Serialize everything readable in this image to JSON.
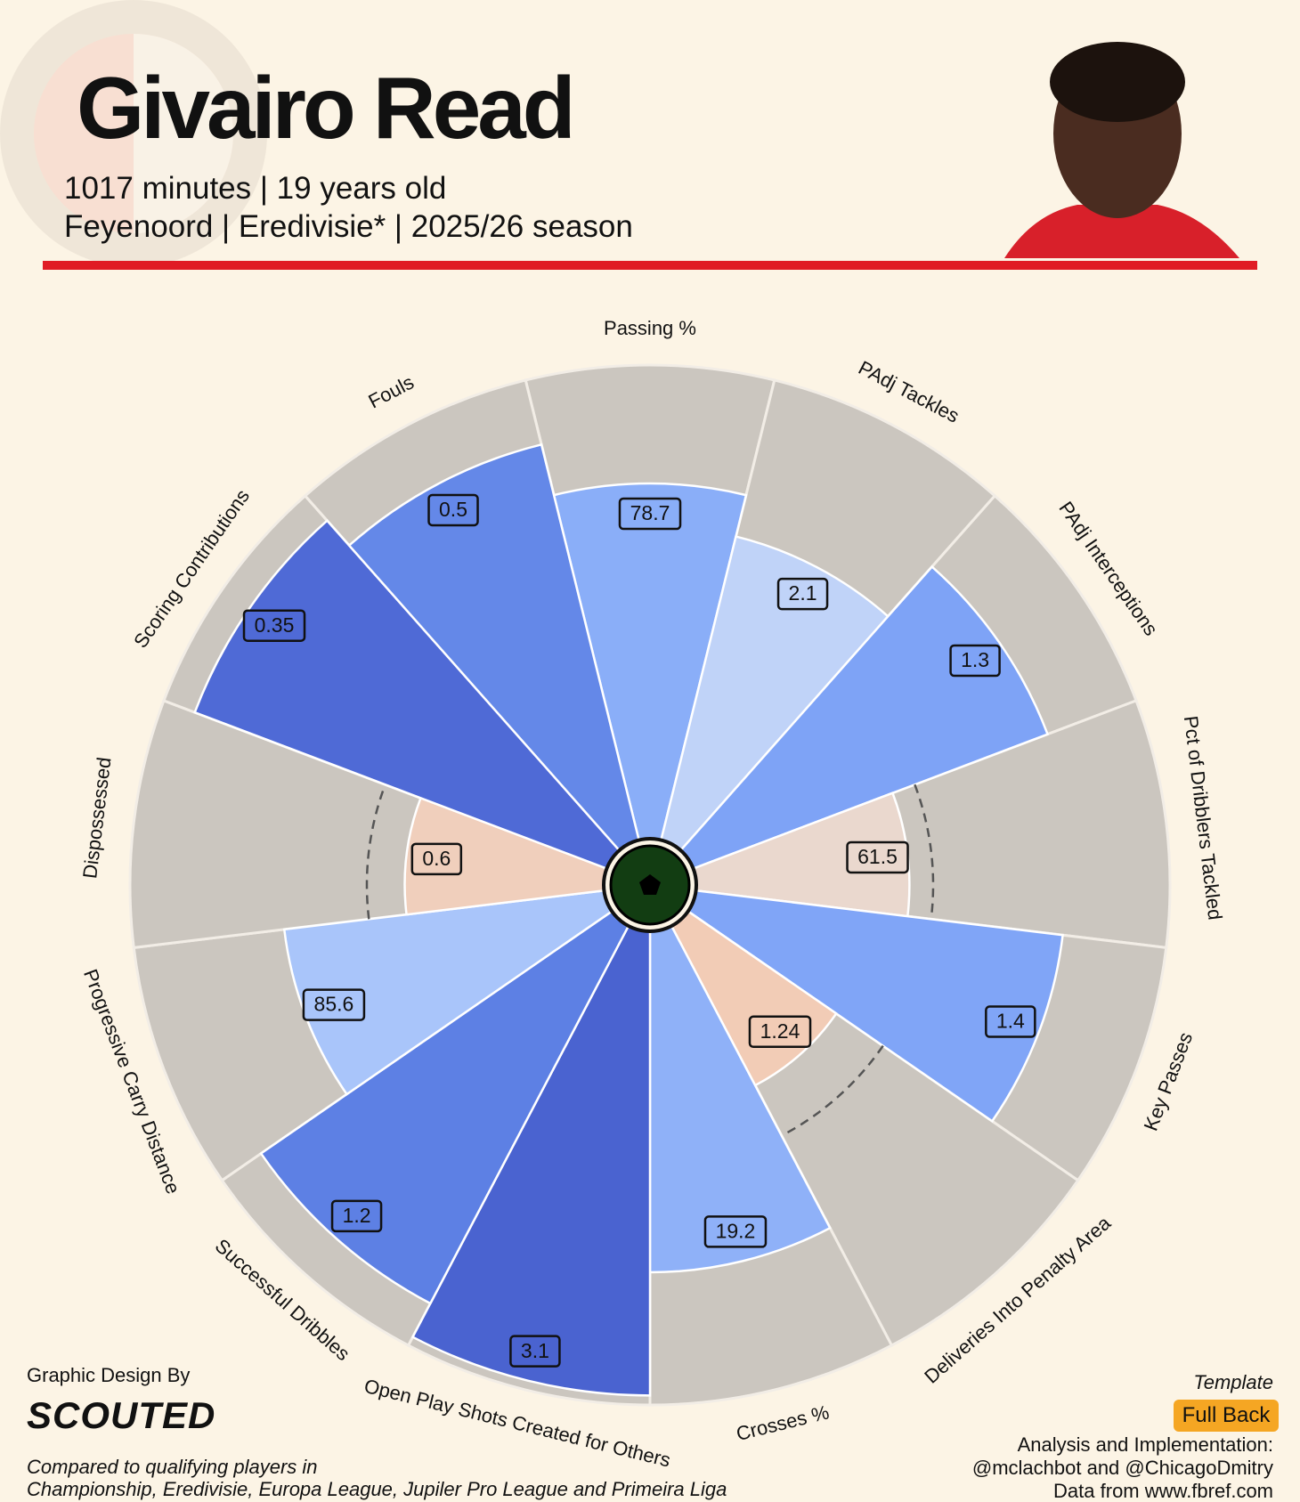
{
  "chart_data": {
    "type": "pizza",
    "title": "Givairo Read",
    "subtitle_lines": [
      "1017 minutes | 19 years old",
      "Feyenoord | Eredivisie* | 2025/26 season"
    ],
    "categories": [
      "Passing %",
      "PAdj Tackles",
      "PAdj Interceptions",
      "Pct of Dribblers Tackled",
      "Key Passes",
      "Deliveries Into Penalty Area",
      "Crosses %",
      "Open Play Shots Created for Others",
      "Successful Dribbles",
      "Progressive Carry Distance",
      "Dispossessed",
      "Scoring Contributions",
      "Fouls"
    ],
    "values": [
      75,
      66,
      80,
      45,
      78,
      38,
      72,
      98,
      90,
      68,
      42,
      93,
      86
    ],
    "stats": [
      78.7,
      2.1,
      1.3,
      61.5,
      1.4,
      1.24,
      19.2,
      3.1,
      1.2,
      85.6,
      0.6,
      0.35,
      0.5
    ],
    "colors": [
      "#8aaef8",
      "#c0d3f8",
      "#7ea3f6",
      "#ead8ce",
      "#80a5f7",
      "#f2ccb6",
      "#8fb1f8",
      "#4a63d0",
      "#5d80e4",
      "#a9c5fa",
      "#f0cfbc",
      "#4f6ad6",
      "#6488e8"
    ],
    "ylim": [
      0,
      100
    ],
    "reference_line": 50
  },
  "footer": {
    "credit": "Graphic Design By",
    "brand": "SCOUTED",
    "note_lines": [
      "Compared to qualifying players in",
      "Championship, Eredivisie, Europa League, Jupiler Pro League and Primeira Liga"
    ],
    "template_label": "Template",
    "template": "Full Back",
    "analysis_lines": [
      "Analysis and Implementation:",
      "@mclachbot and @ChicagoDmitry",
      "Data from www.fbref.com"
    ]
  }
}
